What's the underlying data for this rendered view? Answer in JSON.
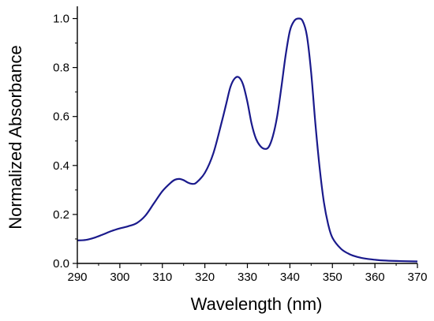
{
  "chart_data": {
    "type": "line",
    "xlabel": "Wavelength (nm)",
    "ylabel": "Normalized Absorbance",
    "xlim": [
      290,
      370
    ],
    "ylim": [
      0.0,
      1.05
    ],
    "xticks": [
      "290",
      "300",
      "310",
      "320",
      "330",
      "340",
      "350",
      "360",
      "370"
    ],
    "xtick_values": [
      290,
      300,
      310,
      320,
      330,
      340,
      350,
      360,
      370
    ],
    "yticks": [
      "0.0",
      "0.2",
      "0.4",
      "0.6",
      "0.8",
      "1.0"
    ],
    "ytick_values": [
      0.0,
      0.2,
      0.4,
      0.6,
      0.8,
      1.0
    ],
    "grid": false,
    "line_color": "#1a1a8c",
    "series": [
      {
        "x": [
          290,
          292,
          294,
          296,
          298,
          300,
          302,
          304,
          306,
          308,
          310,
          312,
          313,
          314,
          315,
          316,
          317,
          318,
          320,
          322,
          324,
          325,
          326,
          327,
          328,
          329,
          330,
          331,
          332,
          333,
          334,
          335,
          336,
          337,
          338,
          339,
          340,
          341,
          342,
          343,
          344,
          345,
          346,
          347,
          348,
          349,
          350,
          352,
          354,
          356,
          358,
          360,
          362,
          365,
          370
        ],
        "y": [
          0.094,
          0.096,
          0.105,
          0.118,
          0.132,
          0.143,
          0.152,
          0.165,
          0.195,
          0.245,
          0.295,
          0.33,
          0.342,
          0.345,
          0.34,
          0.33,
          0.325,
          0.33,
          0.37,
          0.45,
          0.58,
          0.65,
          0.72,
          0.755,
          0.76,
          0.73,
          0.66,
          0.57,
          0.51,
          0.48,
          0.468,
          0.475,
          0.52,
          0.6,
          0.72,
          0.85,
          0.95,
          0.99,
          1.0,
          0.99,
          0.93,
          0.78,
          0.57,
          0.39,
          0.25,
          0.16,
          0.105,
          0.06,
          0.038,
          0.026,
          0.019,
          0.015,
          0.012,
          0.01,
          0.008
        ]
      }
    ]
  }
}
